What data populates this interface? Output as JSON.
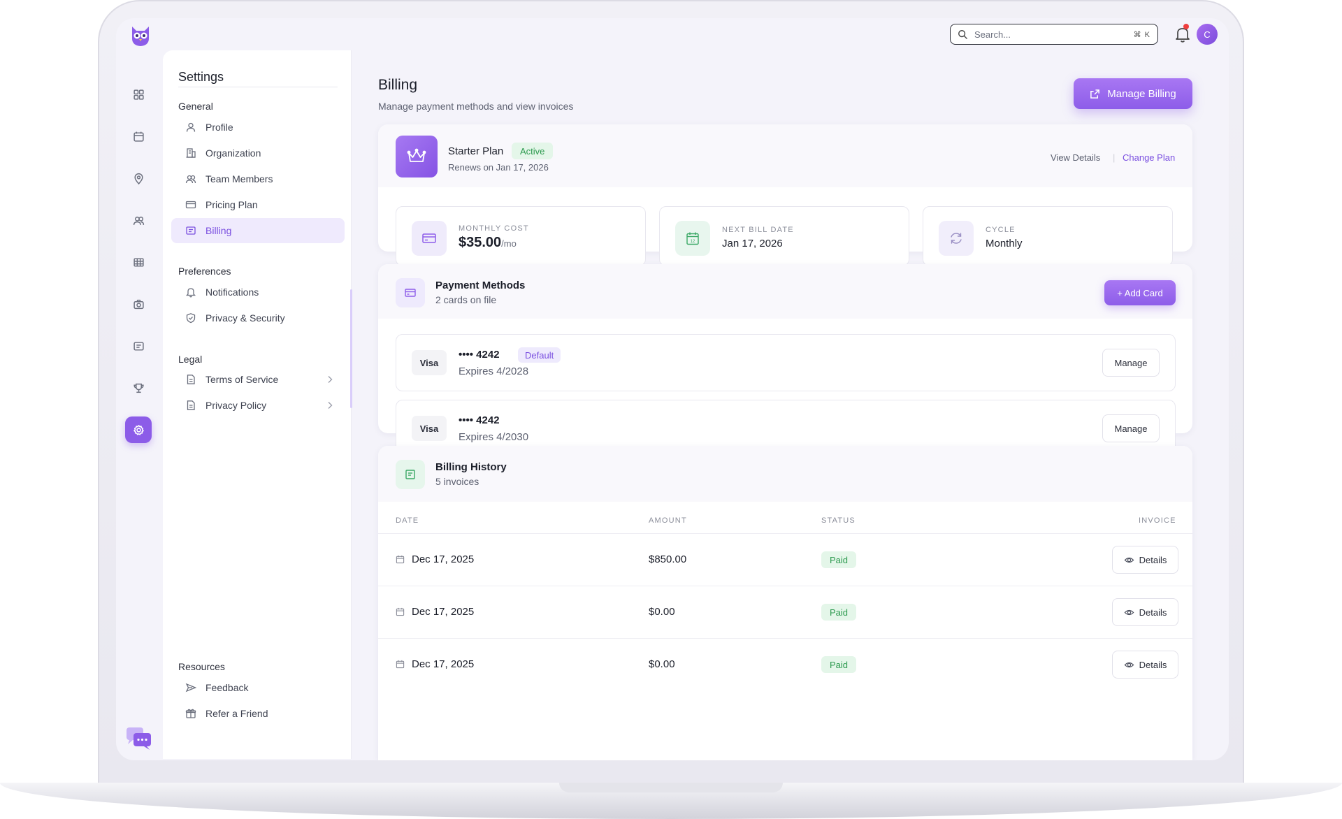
{
  "topbar": {
    "search_placeholder": "Search...",
    "search_shortcut": "⌘ K",
    "avatar_initial": "C"
  },
  "settings": {
    "title": "Settings",
    "sections": {
      "general": "General",
      "preferences": "Preferences",
      "legal": "Legal",
      "resources": "Resources"
    },
    "items": {
      "profile": "Profile",
      "organization": "Organization",
      "team_members": "Team Members",
      "pricing_plan": "Pricing Plan",
      "billing": "Billing",
      "notifications": "Notifications",
      "privacy_security": "Privacy & Security",
      "terms": "Terms of Service",
      "privacy_policy": "Privacy Policy",
      "feedback": "Feedback",
      "refer": "Refer a Friend"
    }
  },
  "page": {
    "title": "Billing",
    "subtitle": "Manage payment methods and view invoices",
    "manage_billing": "Manage Billing"
  },
  "plan": {
    "name": "Starter Plan",
    "status": "Active",
    "renews": "Renews on Jan 17, 2026",
    "view_details": "View Details",
    "separator": "|",
    "change_plan": "Change Plan",
    "stats": {
      "monthly_cost_label": "MONTHLY COST",
      "monthly_cost_value": "$35.00",
      "monthly_cost_unit": "/mo",
      "next_bill_label": "NEXT BILL DATE",
      "next_bill_value": "Jan 17, 2026",
      "cycle_label": "CYCLE",
      "cycle_value": "Monthly"
    }
  },
  "payment": {
    "title": "Payment Methods",
    "subtitle": "2 cards on file",
    "add_card": "+ Add Card",
    "cards": [
      {
        "brand": "Visa",
        "number": "•••• 4242",
        "badge": "Default",
        "expires": "Expires 4/2028",
        "action": "Manage"
      },
      {
        "brand": "Visa",
        "number": "•••• 4242",
        "expires": "Expires 4/2030",
        "action": "Manage"
      }
    ]
  },
  "history": {
    "title": "Billing History",
    "subtitle": "5 invoices",
    "columns": {
      "date": "DATE",
      "amount": "AMOUNT",
      "status": "STATUS",
      "invoice": "INVOICE"
    },
    "rows": [
      {
        "date": "Dec 17, 2025",
        "amount": "$850.00",
        "status": "Paid",
        "action": "Details"
      },
      {
        "date": "Dec 17, 2025",
        "amount": "$0.00",
        "status": "Paid",
        "action": "Details"
      },
      {
        "date": "Dec 17, 2025",
        "amount": "$0.00",
        "status": "Paid",
        "action": "Details"
      }
    ]
  },
  "colors": {
    "accent": "#8d5de9",
    "accent_light": "#efeafd",
    "success": "#2d9a4f",
    "success_bg": "#e4f6e9"
  },
  "icons": {
    "rail": [
      "grid-icon",
      "calendar-icon",
      "map-pin-icon",
      "users-icon",
      "table-icon",
      "camera-icon",
      "message-icon",
      "trophy-icon",
      "gear-icon"
    ]
  }
}
